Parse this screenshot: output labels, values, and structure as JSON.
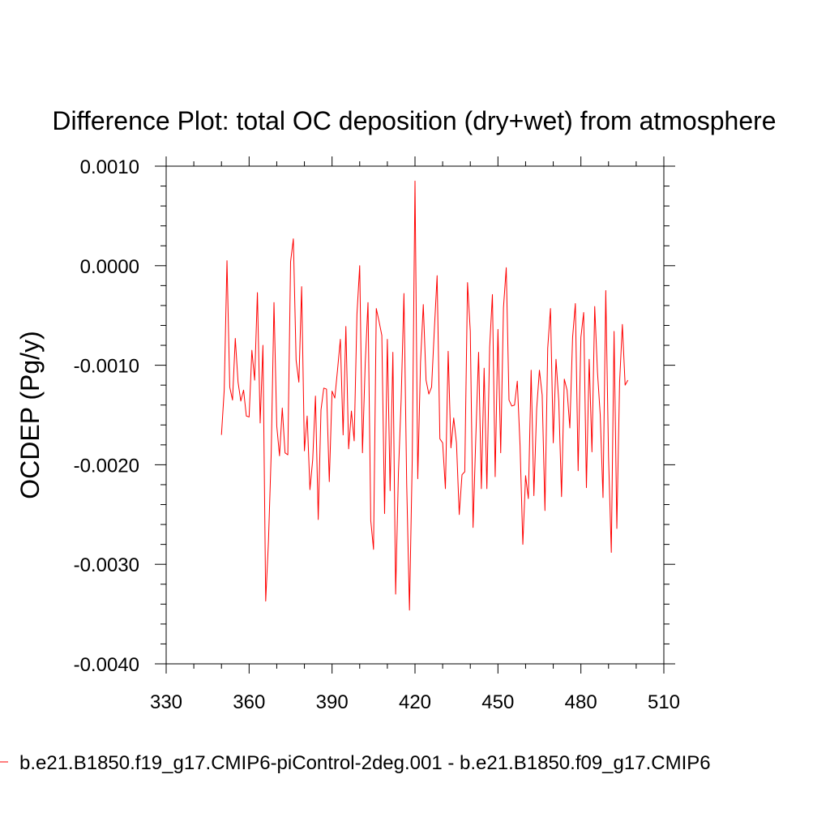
{
  "chart_data": {
    "type": "line",
    "title": "Difference Plot: total OC deposition (dry+wet) from atmosphere",
    "xlabel": "",
    "ylabel": "OCDEP  (Pg/y)",
    "xlim": [
      330,
      510
    ],
    "ylim": [
      -0.004,
      0.001
    ],
    "x_ticks": [
      330,
      360,
      390,
      420,
      450,
      480,
      510
    ],
    "x_tick_labels": [
      "330",
      "360",
      "390",
      "420",
      "450",
      "480",
      "510"
    ],
    "y_ticks": [
      -0.004,
      -0.003,
      -0.002,
      -0.001,
      0.0,
      0.001
    ],
    "y_tick_labels": [
      "-0.0040",
      "-0.0030",
      "-0.0020",
      "-0.0010",
      "0.0000",
      "0.0010"
    ],
    "grid": false,
    "legend_position": "bottom",
    "series": [
      {
        "name": "b.e21.B1850.f19_g17.CMIP6-piControl-2deg.001 - b.e21.B1850.f09_g17.CMIP6",
        "color": "#ff0000",
        "x_start": 350,
        "x_step": 1,
        "values": [
          -0.0017,
          -0.00125,
          5e-05,
          -0.00122,
          -0.00135,
          -0.00073,
          -0.00117,
          -0.00136,
          -0.00125,
          -0.00151,
          -0.00152,
          -0.00085,
          -0.00115,
          -0.00027,
          -0.00158,
          -0.0008,
          -0.00337,
          -0.00277,
          -0.00188,
          -0.00037,
          -0.00161,
          -0.00191,
          -0.00143,
          -0.00188,
          -0.0019,
          4e-05,
          0.00027,
          -0.00095,
          -0.00117,
          -0.00021,
          -0.00186,
          -0.00151,
          -0.00225,
          -0.00195,
          -0.00131,
          -0.00255,
          -0.00145,
          -0.00123,
          -0.00124,
          -0.00217,
          -0.00126,
          -0.00133,
          -0.00104,
          -0.00074,
          -0.0017,
          -0.00061,
          -0.00184,
          -0.00146,
          -0.00176,
          -0.00049,
          0.0,
          -0.00188,
          -0.00098,
          -0.00037,
          -0.00256,
          -0.00285,
          -0.00043,
          -0.00056,
          -0.0007,
          -0.00249,
          -0.00074,
          -0.00226,
          -0.00087,
          -0.0033,
          -0.00209,
          -0.00134,
          -0.00028,
          -0.0022,
          -0.00346,
          -0.00195,
          0.00085,
          -0.00214,
          -0.00097,
          -0.00039,
          -0.00115,
          -0.00129,
          -0.00122,
          -0.00064,
          -0.0001,
          -0.00174,
          -0.00178,
          -0.00224,
          -0.00086,
          -0.00183,
          -0.00153,
          -0.00178,
          -0.0025,
          -0.0021,
          -0.00207,
          -0.00017,
          -0.00066,
          -0.00263,
          -0.00172,
          -0.00087,
          -0.00224,
          -0.00103,
          -0.00224,
          -0.00082,
          -0.00029,
          -0.00212,
          -0.00064,
          -0.00188,
          -0.00042,
          -2e-05,
          -0.00135,
          -0.00141,
          -0.0014,
          -0.00116,
          -0.00181,
          -0.0028,
          -0.00211,
          -0.00234,
          -0.00105,
          -0.00231,
          -0.00144,
          -0.00105,
          -0.0013,
          -0.00246,
          -0.00083,
          -0.00043,
          -0.00178,
          -0.00094,
          -0.00136,
          -0.00232,
          -0.00114,
          -0.00125,
          -0.00163,
          -0.00072,
          -0.00038,
          -0.00206,
          -0.00072,
          -0.00047,
          -0.00223,
          -0.00094,
          -0.00187,
          -0.00041,
          -0.00107,
          -0.0015,
          -0.00233,
          -0.00025,
          -0.00192,
          -0.00288,
          -0.00066,
          -0.00264,
          -0.00117,
          -0.00059,
          -0.0012,
          -0.00115
        ]
      }
    ]
  }
}
